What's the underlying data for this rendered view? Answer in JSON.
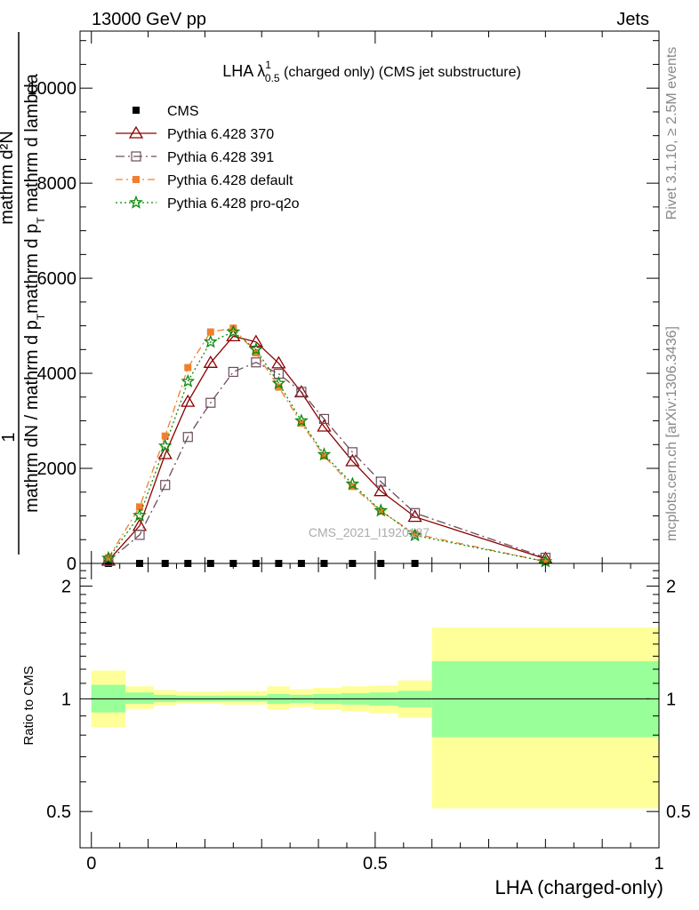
{
  "header": {
    "left": "13000 GeV pp",
    "right": "Jets"
  },
  "side_text": {
    "rivet": "Rivet 3.1.10, ≥ 2.5M events",
    "mcplots": "mcplots.cern.ch [arXiv:1306.3436]"
  },
  "watermark": "CMS_2021_I1920187",
  "colors": {
    "cms": "#000000",
    "p370": "#8b0000",
    "p391": "#6b4c5c",
    "pdefault": "#f08030",
    "pq2o": "#0a8a0a",
    "band_outer": "#ffff99",
    "band_inner": "#99ff99"
  },
  "chart_data": [
    {
      "type": "line",
      "title": {
        "prefix": "LHA λ",
        "sup": "1",
        "sub": "0.5",
        "suffix": " (charged only) (CMS jet substructure)"
      },
      "ylabel": {
        "one": "1",
        "top": "mathrm d²N",
        "bottom_left": "mathrm dN / mathrm d p",
        "bottom_right": "mathrm d p",
        "bottom_rest": " mathrm d lambda",
        "sub": "T"
      },
      "ylim": [
        0,
        11200
      ],
      "xlim": [
        -0.02,
        1.0
      ],
      "yticks": [
        {
          "value": 0,
          "label": "0"
        },
        {
          "value": 2000,
          "label": "2000"
        },
        {
          "value": 4000,
          "label": "4000"
        },
        {
          "value": 6000,
          "label": "6000"
        },
        {
          "value": 8000,
          "label": "8000"
        },
        {
          "value": 10000,
          "label": "10000"
        }
      ],
      "x": [
        0.03,
        0.085,
        0.13,
        0.17,
        0.21,
        0.25,
        0.29,
        0.33,
        0.37,
        0.41,
        0.46,
        0.51,
        0.57,
        0.8
      ],
      "series": [
        {
          "name": "CMS",
          "marker": "square-filled",
          "values": [
            0,
            0,
            0,
            0,
            0,
            0,
            0,
            0,
            0,
            0,
            0,
            0,
            0,
            null
          ]
        },
        {
          "name": "Pythia 6.428 370",
          "marker": "triangle-open",
          "style": "solid",
          "values": [
            60,
            790,
            2300,
            3400,
            4220,
            4780,
            4660,
            4210,
            3600,
            2880,
            2150,
            1520,
            980,
            100
          ]
        },
        {
          "name": "Pythia 6.428 391",
          "marker": "square-open",
          "style": "dashdot",
          "values": [
            50,
            600,
            1650,
            2660,
            3380,
            4030,
            4230,
            3990,
            3610,
            3040,
            2340,
            1720,
            1060,
            120
          ]
        },
        {
          "name": "Pythia 6.428 default",
          "marker": "square-filled",
          "style": "dashdot",
          "values": [
            120,
            1190,
            2680,
            4120,
            4870,
            4950,
            4430,
            3710,
            2950,
            2260,
            1620,
            1100,
            620,
            40
          ]
        },
        {
          "name": "Pythia 6.428 pro-q2o",
          "marker": "star",
          "style": "dotted",
          "values": [
            110,
            1010,
            2470,
            3830,
            4660,
            4870,
            4500,
            3790,
            3000,
            2290,
            1670,
            1110,
            590,
            40
          ]
        }
      ]
    },
    {
      "type": "area",
      "ylabel": "Ratio to CMS",
      "xlabel": "LHA (charged-only)",
      "ylim": [
        0.4,
        2.3
      ],
      "log_y": true,
      "yticks": [
        {
          "value": 0.5,
          "label": "0.5"
        },
        {
          "value": 1,
          "label": "1"
        },
        {
          "value": 2,
          "label": "2"
        }
      ],
      "xticks": [
        {
          "value": 0,
          "label": "0"
        },
        {
          "value": 0.5,
          "label": "0.5"
        },
        {
          "value": 1,
          "label": "1"
        }
      ],
      "bins": [
        {
          "lo": 0.0,
          "hi": 0.06,
          "outer": [
            0.84,
            1.19
          ],
          "inner": [
            0.92,
            1.09
          ]
        },
        {
          "lo": 0.06,
          "hi": 0.11,
          "outer": [
            0.94,
            1.08
          ],
          "inner": [
            0.97,
            1.04
          ]
        },
        {
          "lo": 0.11,
          "hi": 0.15,
          "outer": [
            0.96,
            1.055
          ],
          "inner": [
            0.98,
            1.025
          ]
        },
        {
          "lo": 0.15,
          "hi": 0.19,
          "outer": [
            0.97,
            1.045
          ],
          "inner": [
            0.985,
            1.02
          ]
        },
        {
          "lo": 0.19,
          "hi": 0.23,
          "outer": [
            0.97,
            1.045
          ],
          "inner": [
            0.985,
            1.02
          ]
        },
        {
          "lo": 0.23,
          "hi": 0.31,
          "outer": [
            0.965,
            1.05
          ],
          "inner": [
            0.985,
            1.02
          ]
        },
        {
          "lo": 0.31,
          "hi": 0.35,
          "outer": [
            0.935,
            1.08
          ],
          "inner": [
            0.97,
            1.03
          ]
        },
        {
          "lo": 0.35,
          "hi": 0.39,
          "outer": [
            0.95,
            1.06
          ],
          "inner": [
            0.975,
            1.025
          ]
        },
        {
          "lo": 0.39,
          "hi": 0.44,
          "outer": [
            0.935,
            1.07
          ],
          "inner": [
            0.97,
            1.03
          ]
        },
        {
          "lo": 0.44,
          "hi": 0.49,
          "outer": [
            0.925,
            1.08
          ],
          "inner": [
            0.965,
            1.035
          ]
        },
        {
          "lo": 0.49,
          "hi": 0.54,
          "outer": [
            0.915,
            1.085
          ],
          "inner": [
            0.96,
            1.04
          ]
        },
        {
          "lo": 0.54,
          "hi": 0.6,
          "outer": [
            0.89,
            1.12
          ],
          "inner": [
            0.95,
            1.05
          ]
        },
        {
          "lo": 0.6,
          "hi": 1.0,
          "outer": [
            0.51,
            1.55
          ],
          "inner": [
            0.79,
            1.26
          ]
        }
      ]
    }
  ]
}
